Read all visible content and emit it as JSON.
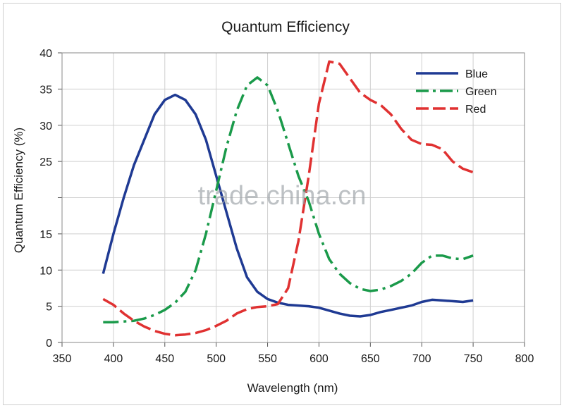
{
  "chart_data": {
    "type": "line",
    "title": "Quantum Efficiency",
    "xlabel": "Wavelength (nm)",
    "ylabel": "Quantum Efficiency (%)",
    "xlim": [
      350,
      800
    ],
    "ylim": [
      0,
      40
    ],
    "x_ticks": [
      "350",
      "400",
      "450",
      "500",
      "550",
      "600",
      "650",
      "700",
      "750",
      "800"
    ],
    "y_ticks": [
      "0",
      "5",
      "10",
      "15",
      "",
      "25",
      "30",
      "35",
      "40"
    ],
    "grid": true,
    "legend_position": "top-right",
    "series": [
      {
        "name": "Blue",
        "color": "#1f3a93",
        "style": "solid",
        "points": [
          [
            390,
            9.5
          ],
          [
            400,
            15
          ],
          [
            410,
            20
          ],
          [
            420,
            24.5
          ],
          [
            430,
            28
          ],
          [
            440,
            31.5
          ],
          [
            450,
            33.5
          ],
          [
            460,
            34.2
          ],
          [
            470,
            33.5
          ],
          [
            480,
            31.5
          ],
          [
            490,
            28
          ],
          [
            500,
            23
          ],
          [
            510,
            18
          ],
          [
            520,
            13
          ],
          [
            530,
            9
          ],
          [
            540,
            7
          ],
          [
            550,
            6
          ],
          [
            560,
            5.5
          ],
          [
            570,
            5.2
          ],
          [
            580,
            5.1
          ],
          [
            590,
            5
          ],
          [
            600,
            4.8
          ],
          [
            610,
            4.4
          ],
          [
            620,
            4
          ],
          [
            630,
            3.7
          ],
          [
            640,
            3.6
          ],
          [
            650,
            3.8
          ],
          [
            660,
            4.2
          ],
          [
            670,
            4.5
          ],
          [
            680,
            4.8
          ],
          [
            690,
            5.1
          ],
          [
            700,
            5.6
          ],
          [
            710,
            5.9
          ],
          [
            720,
            5.8
          ],
          [
            730,
            5.7
          ],
          [
            740,
            5.6
          ],
          [
            750,
            5.8
          ]
        ]
      },
      {
        "name": "Green",
        "color": "#1a9a4a",
        "style": "dash-dot",
        "points": [
          [
            390,
            2.8
          ],
          [
            400,
            2.8
          ],
          [
            410,
            2.9
          ],
          [
            420,
            3
          ],
          [
            430,
            3.3
          ],
          [
            440,
            3.8
          ],
          [
            450,
            4.5
          ],
          [
            460,
            5.5
          ],
          [
            470,
            7
          ],
          [
            480,
            10
          ],
          [
            490,
            15
          ],
          [
            500,
            21
          ],
          [
            510,
            27
          ],
          [
            520,
            32
          ],
          [
            530,
            35.5
          ],
          [
            540,
            36.6
          ],
          [
            550,
            35.5
          ],
          [
            560,
            32
          ],
          [
            570,
            27.5
          ],
          [
            580,
            23
          ],
          [
            590,
            19.5
          ],
          [
            600,
            15
          ],
          [
            610,
            11.5
          ],
          [
            620,
            9.5
          ],
          [
            630,
            8.2
          ],
          [
            640,
            7.4
          ],
          [
            650,
            7.1
          ],
          [
            660,
            7.3
          ],
          [
            670,
            7.8
          ],
          [
            680,
            8.5
          ],
          [
            690,
            9.5
          ],
          [
            700,
            11
          ],
          [
            710,
            12
          ],
          [
            720,
            12
          ],
          [
            730,
            11.6
          ],
          [
            740,
            11.5
          ],
          [
            750,
            12
          ]
        ]
      },
      {
        "name": "Red",
        "color": "#e03131",
        "style": "dashed",
        "points": [
          [
            390,
            6
          ],
          [
            400,
            5.2
          ],
          [
            410,
            4
          ],
          [
            420,
            3
          ],
          [
            430,
            2.2
          ],
          [
            440,
            1.6
          ],
          [
            450,
            1.2
          ],
          [
            460,
            1
          ],
          [
            470,
            1.1
          ],
          [
            480,
            1.3
          ],
          [
            490,
            1.7
          ],
          [
            500,
            2.3
          ],
          [
            510,
            3
          ],
          [
            520,
            4
          ],
          [
            530,
            4.6
          ],
          [
            540,
            4.9
          ],
          [
            550,
            5
          ],
          [
            560,
            5.3
          ],
          [
            570,
            7.5
          ],
          [
            580,
            14
          ],
          [
            590,
            23
          ],
          [
            600,
            33
          ],
          [
            610,
            38.8
          ],
          [
            620,
            38.5
          ],
          [
            630,
            36.5
          ],
          [
            640,
            34.5
          ],
          [
            650,
            33.5
          ],
          [
            660,
            32.8
          ],
          [
            670,
            31.5
          ],
          [
            680,
            29.5
          ],
          [
            690,
            28
          ],
          [
            700,
            27.4
          ],
          [
            710,
            27.3
          ],
          [
            720,
            26.7
          ],
          [
            730,
            25
          ],
          [
            740,
            24
          ],
          [
            750,
            23.5
          ]
        ]
      }
    ],
    "watermark": "trade.china.cn"
  }
}
